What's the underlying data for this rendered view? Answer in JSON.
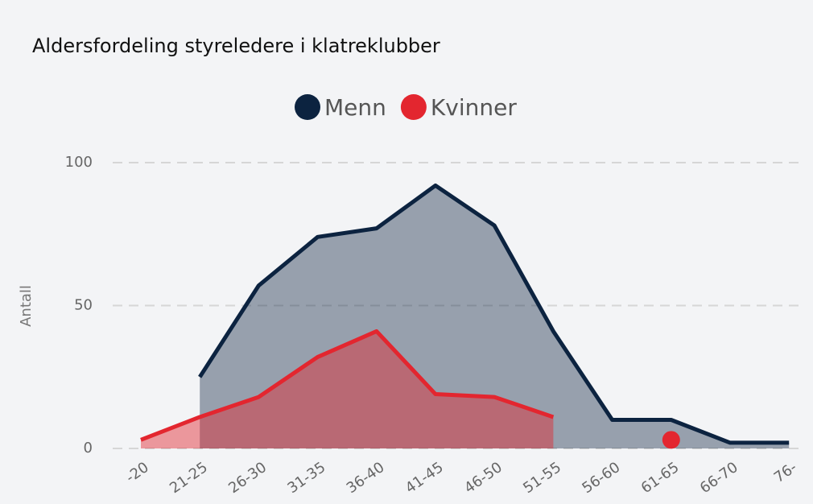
{
  "chart_data": {
    "type": "area",
    "title": "Aldersfordeling styreledere i klatreklubber",
    "y_label": "Antall",
    "categories": [
      "-20",
      "21-25",
      "26-30",
      "31-35",
      "36-40",
      "41-45",
      "46-50",
      "51-55",
      "56-60",
      "61-65",
      "66-70",
      "76-"
    ],
    "series": [
      {
        "name": "Menn",
        "color": "#0c2340",
        "values": [
          null,
          25,
          57,
          74,
          77,
          92,
          78,
          41,
          10,
          10,
          2,
          2
        ]
      },
      {
        "name": "Kvinner",
        "color": "#e3262f",
        "values": [
          3,
          11,
          18,
          32,
          41,
          19,
          18,
          11,
          null,
          3,
          null,
          null
        ]
      }
    ],
    "ylim": [
      0,
      100
    ],
    "yticks": [
      0,
      50,
      100
    ],
    "grid": true,
    "legend": "top"
  }
}
